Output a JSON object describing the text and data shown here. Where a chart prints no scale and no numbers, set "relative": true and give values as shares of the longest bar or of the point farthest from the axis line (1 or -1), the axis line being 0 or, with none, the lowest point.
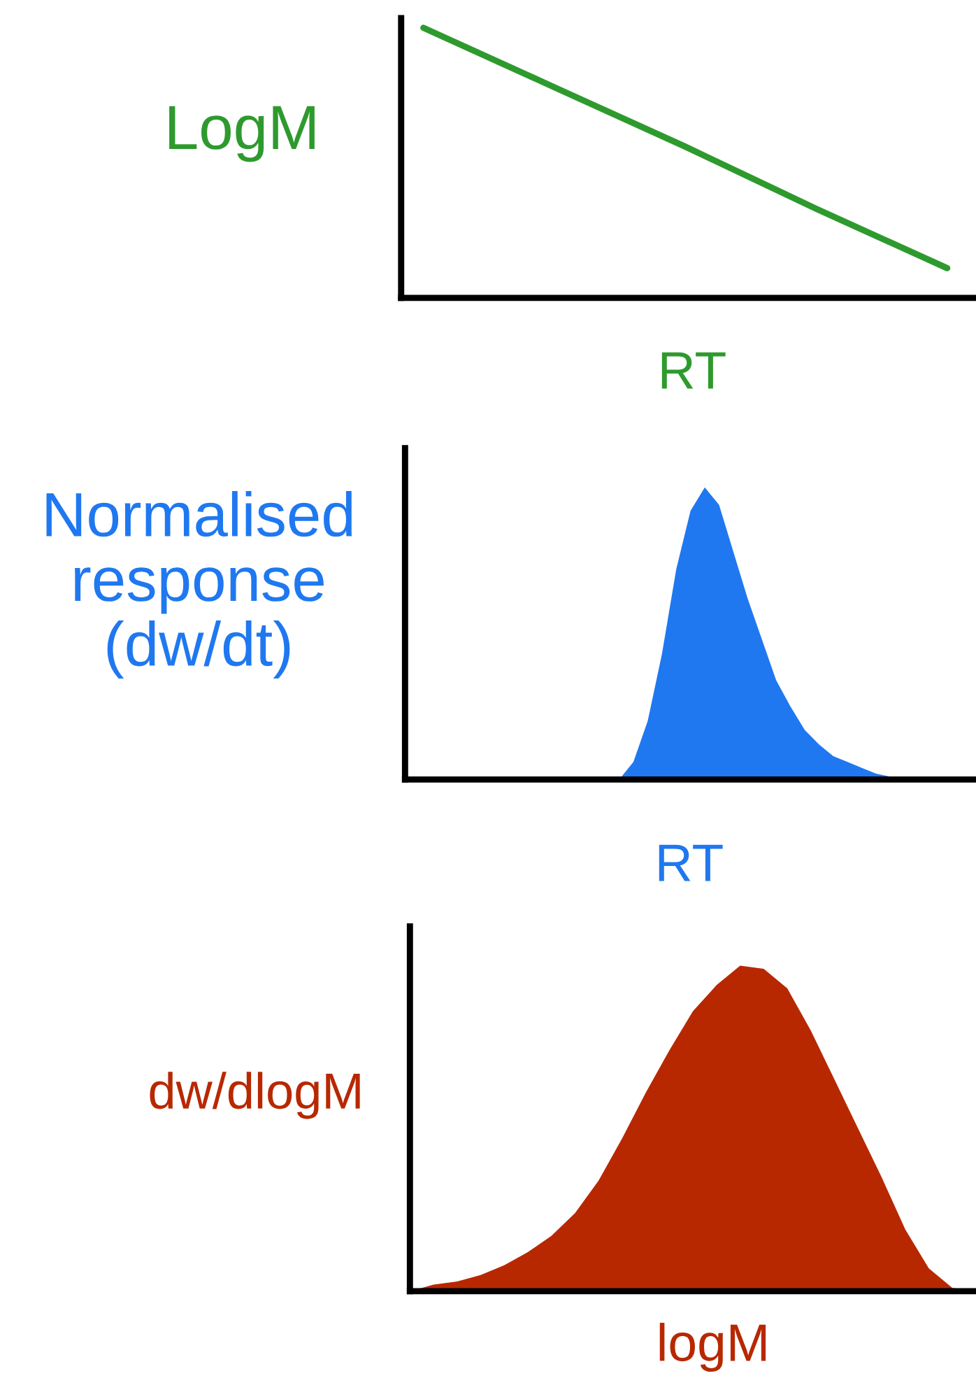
{
  "chart_data": [
    {
      "type": "line",
      "relative": true,
      "xlabel": "RT",
      "ylabel": "LogM",
      "categories": [
        null,
        null,
        null,
        null,
        null
      ],
      "series": [
        {
          "color": "#2e9a2e",
          "values": [
            1.0,
            0.78,
            0.56,
            0.33,
            0.11
          ]
        }
      ]
    },
    {
      "type": "area",
      "relative": true,
      "xlabel": "RT",
      "ylabel": "Normalised\nresponse\n(dw/dt)",
      "categories": [
        null,
        null,
        null,
        null,
        null,
        null,
        null,
        null,
        null,
        null,
        null,
        null,
        null,
        null,
        null,
        null,
        null,
        null,
        null,
        null,
        null,
        null,
        null,
        null,
        null,
        null,
        null,
        null,
        null,
        null,
        null,
        null,
        null,
        null,
        null,
        null,
        null,
        null,
        null,
        null,
        null
      ],
      "series": [
        {
          "color": "#1f78f0",
          "values": [
            0,
            0,
            0,
            0,
            0,
            0,
            0,
            0,
            0,
            0,
            0,
            0,
            0,
            0,
            0,
            0,
            0.06,
            0.2,
            0.43,
            0.72,
            0.92,
            1.0,
            0.94,
            0.78,
            0.62,
            0.48,
            0.34,
            0.25,
            0.17,
            0.12,
            0.08,
            0.06,
            0.04,
            0.02,
            0.01,
            0,
            0,
            0,
            0,
            0,
            0
          ]
        }
      ]
    },
    {
      "type": "area",
      "relative": true,
      "xlabel": "logM",
      "ylabel": "dw/dlogM",
      "categories": [
        null,
        null,
        null,
        null,
        null,
        null,
        null,
        null,
        null,
        null,
        null,
        null,
        null,
        null,
        null,
        null,
        null,
        null,
        null,
        null,
        null,
        null,
        null,
        null,
        null
      ],
      "series": [
        {
          "color": "#b82800",
          "values": [
            0,
            0.02,
            0.03,
            0.05,
            0.08,
            0.12,
            0.17,
            0.24,
            0.34,
            0.47,
            0.61,
            0.74,
            0.86,
            0.94,
            1.0,
            0.99,
            0.93,
            0.8,
            0.65,
            0.5,
            0.35,
            0.19,
            0.07,
            0.01,
            0
          ]
        }
      ]
    }
  ]
}
